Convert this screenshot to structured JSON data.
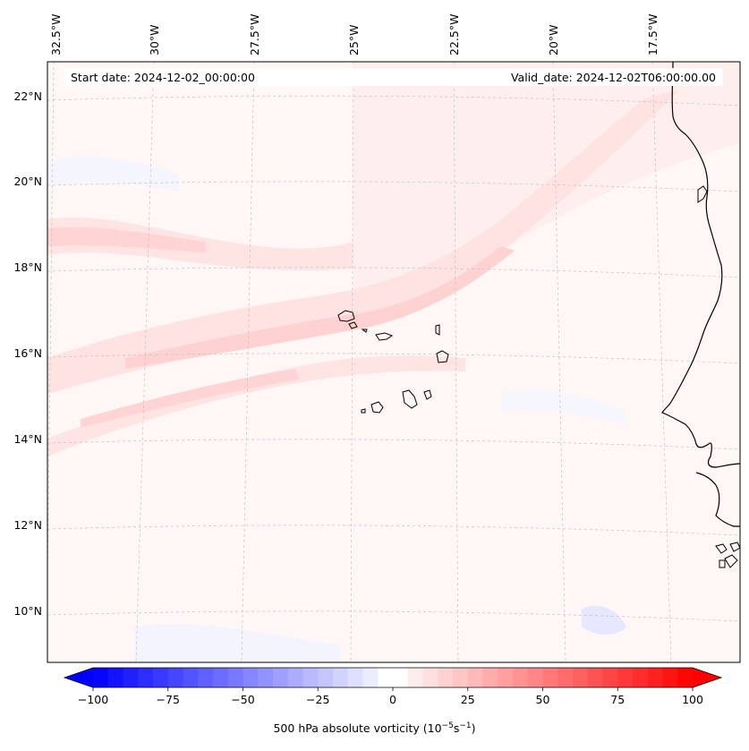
{
  "header": {
    "start_date": "Start date: 2024-12-02_00:00:00",
    "valid_date": "Valid_date: 2024-12-02T06:00:00.00"
  },
  "longitude_labels": [
    "32.5°W",
    "30°W",
    "27.5°W",
    "25°W",
    "22.5°W",
    "20°W",
    "17.5°W"
  ],
  "latitude_labels": [
    "22°N",
    "20°N",
    "18°N",
    "16°N",
    "14°N",
    "12°N",
    "10°N"
  ],
  "colorbar": {
    "ticks": [
      "−100",
      "−75",
      "−50",
      "−25",
      "0",
      "25",
      "50",
      "75",
      "100"
    ],
    "label_main": "500 hPa absolute vorticity (10",
    "label_exp1": "−5",
    "label_mid": "s",
    "label_exp2": "−1",
    "label_end": ")",
    "min": -100,
    "max": 100,
    "negative_color": "#0000ff",
    "positive_color": "#ff0000"
  },
  "colors": {
    "coastline": "#000000",
    "gridline": "#bbbbbb",
    "band_light": "#ffe8e8",
    "band_mid": "#ffd6d6",
    "background": "#fff6f6",
    "faint_blue": "#eef0ff"
  },
  "icons": {
    "colorbar-min-arrow": "triangle-left",
    "colorbar-max-arrow": "triangle-right"
  }
}
